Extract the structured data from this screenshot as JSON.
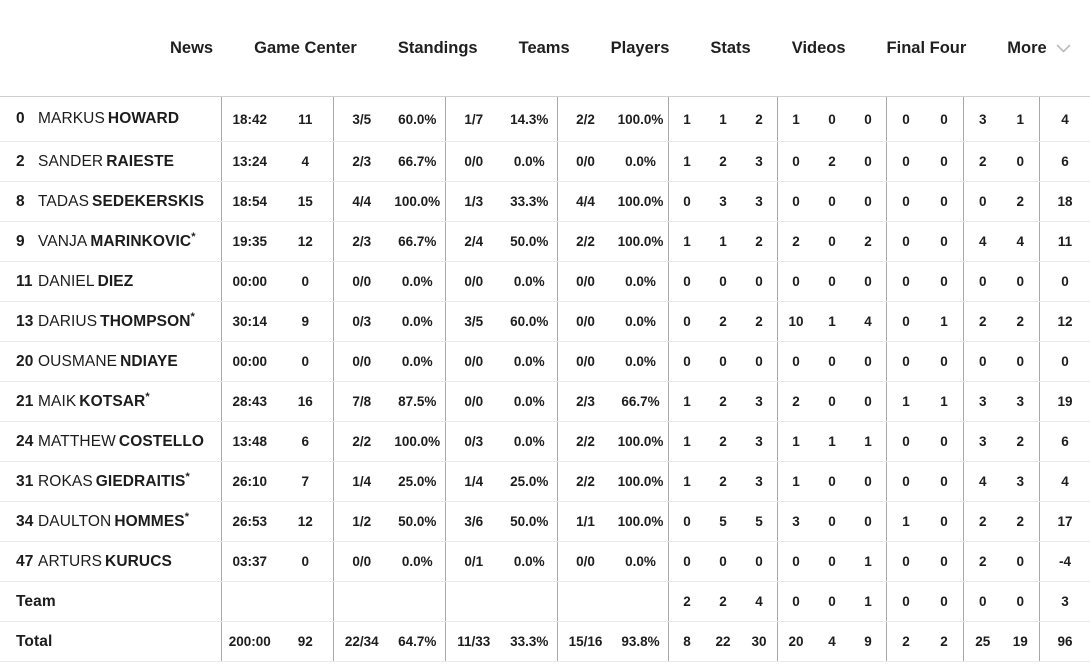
{
  "nav": {
    "items": [
      {
        "label": "News"
      },
      {
        "label": "Game Center"
      },
      {
        "label": "Standings"
      },
      {
        "label": "Teams"
      },
      {
        "label": "Players"
      },
      {
        "label": "Stats"
      },
      {
        "label": "Videos"
      },
      {
        "label": "Final Four"
      },
      {
        "label": "More",
        "chevron": true
      }
    ],
    "more_chevron_icon": "chevron-down"
  },
  "colors": {
    "text": "#1c1c1c",
    "column_divider": "#a8a8a8",
    "row_divider": "#e9e9e9",
    "chevron": "#bcbcbc"
  },
  "table": {
    "starter_mark": "*",
    "rows": [
      {
        "type": "player",
        "num": "0",
        "first": "MARKUS",
        "last": "HOWARD",
        "starter": false,
        "groups": [
          [
            "18:42",
            "11"
          ],
          [
            "3/5",
            "60.0%"
          ],
          [
            "1/7",
            "14.3%"
          ],
          [
            "2/2",
            "100.0%"
          ],
          [
            "1",
            "1",
            "2"
          ],
          [
            "1",
            "0",
            "0"
          ],
          [
            "0",
            "0"
          ],
          [
            "3",
            "1"
          ],
          [
            "4"
          ]
        ]
      },
      {
        "type": "player",
        "num": "2",
        "first": "SANDER",
        "last": "RAIESTE",
        "starter": false,
        "groups": [
          [
            "13:24",
            "4"
          ],
          [
            "2/3",
            "66.7%"
          ],
          [
            "0/0",
            "0.0%"
          ],
          [
            "0/0",
            "0.0%"
          ],
          [
            "1",
            "2",
            "3"
          ],
          [
            "0",
            "2",
            "0"
          ],
          [
            "0",
            "0"
          ],
          [
            "2",
            "0"
          ],
          [
            "6"
          ]
        ]
      },
      {
        "type": "player",
        "num": "8",
        "first": "TADAS",
        "last": "SEDEKERSKIS",
        "starter": false,
        "groups": [
          [
            "18:54",
            "15"
          ],
          [
            "4/4",
            "100.0%"
          ],
          [
            "1/3",
            "33.3%"
          ],
          [
            "4/4",
            "100.0%"
          ],
          [
            "0",
            "3",
            "3"
          ],
          [
            "0",
            "0",
            "0"
          ],
          [
            "0",
            "0"
          ],
          [
            "0",
            "2"
          ],
          [
            "18"
          ]
        ]
      },
      {
        "type": "player",
        "num": "9",
        "first": "VANJA",
        "last": "MARINKOVIC",
        "starter": true,
        "groups": [
          [
            "19:35",
            "12"
          ],
          [
            "2/3",
            "66.7%"
          ],
          [
            "2/4",
            "50.0%"
          ],
          [
            "2/2",
            "100.0%"
          ],
          [
            "1",
            "1",
            "2"
          ],
          [
            "2",
            "0",
            "2"
          ],
          [
            "0",
            "0"
          ],
          [
            "4",
            "4"
          ],
          [
            "11"
          ]
        ]
      },
      {
        "type": "player",
        "num": "11",
        "first": "DANIEL",
        "last": "DIEZ",
        "starter": false,
        "groups": [
          [
            "00:00",
            "0"
          ],
          [
            "0/0",
            "0.0%"
          ],
          [
            "0/0",
            "0.0%"
          ],
          [
            "0/0",
            "0.0%"
          ],
          [
            "0",
            "0",
            "0"
          ],
          [
            "0",
            "0",
            "0"
          ],
          [
            "0",
            "0"
          ],
          [
            "0",
            "0"
          ],
          [
            "0"
          ]
        ]
      },
      {
        "type": "player",
        "num": "13",
        "first": "DARIUS",
        "last": "THOMPSON",
        "starter": true,
        "groups": [
          [
            "30:14",
            "9"
          ],
          [
            "0/3",
            "0.0%"
          ],
          [
            "3/5",
            "60.0%"
          ],
          [
            "0/0",
            "0.0%"
          ],
          [
            "0",
            "2",
            "2"
          ],
          [
            "10",
            "1",
            "4"
          ],
          [
            "0",
            "1"
          ],
          [
            "2",
            "2"
          ],
          [
            "12"
          ]
        ]
      },
      {
        "type": "player",
        "num": "20",
        "first": "OUSMANE",
        "last": "NDIAYE",
        "starter": false,
        "groups": [
          [
            "00:00",
            "0"
          ],
          [
            "0/0",
            "0.0%"
          ],
          [
            "0/0",
            "0.0%"
          ],
          [
            "0/0",
            "0.0%"
          ],
          [
            "0",
            "0",
            "0"
          ],
          [
            "0",
            "0",
            "0"
          ],
          [
            "0",
            "0"
          ],
          [
            "0",
            "0"
          ],
          [
            "0"
          ]
        ]
      },
      {
        "type": "player",
        "num": "21",
        "first": "MAIK",
        "last": "KOTSAR",
        "starter": true,
        "groups": [
          [
            "28:43",
            "16"
          ],
          [
            "7/8",
            "87.5%"
          ],
          [
            "0/0",
            "0.0%"
          ],
          [
            "2/3",
            "66.7%"
          ],
          [
            "1",
            "2",
            "3"
          ],
          [
            "2",
            "0",
            "0"
          ],
          [
            "1",
            "1"
          ],
          [
            "3",
            "3"
          ],
          [
            "19"
          ]
        ]
      },
      {
        "type": "player",
        "num": "24",
        "first": "MATTHEW",
        "last": "COSTELLO",
        "starter": false,
        "groups": [
          [
            "13:48",
            "6"
          ],
          [
            "2/2",
            "100.0%"
          ],
          [
            "0/3",
            "0.0%"
          ],
          [
            "2/2",
            "100.0%"
          ],
          [
            "1",
            "2",
            "3"
          ],
          [
            "1",
            "1",
            "1"
          ],
          [
            "0",
            "0"
          ],
          [
            "3",
            "2"
          ],
          [
            "6"
          ]
        ]
      },
      {
        "type": "player",
        "num": "31",
        "first": "ROKAS",
        "last": "GIEDRAITIS",
        "starter": true,
        "groups": [
          [
            "26:10",
            "7"
          ],
          [
            "1/4",
            "25.0%"
          ],
          [
            "1/4",
            "25.0%"
          ],
          [
            "2/2",
            "100.0%"
          ],
          [
            "1",
            "2",
            "3"
          ],
          [
            "1",
            "0",
            "0"
          ],
          [
            "0",
            "0"
          ],
          [
            "4",
            "3"
          ],
          [
            "4"
          ]
        ]
      },
      {
        "type": "player",
        "num": "34",
        "first": "DAULTON",
        "last": "HOMMES",
        "starter": true,
        "groups": [
          [
            "26:53",
            "12"
          ],
          [
            "1/2",
            "50.0%"
          ],
          [
            "3/6",
            "50.0%"
          ],
          [
            "1/1",
            "100.0%"
          ],
          [
            "0",
            "5",
            "5"
          ],
          [
            "3",
            "0",
            "0"
          ],
          [
            "1",
            "0"
          ],
          [
            "2",
            "2"
          ],
          [
            "17"
          ]
        ]
      },
      {
        "type": "player",
        "num": "47",
        "first": "ARTURS",
        "last": "KURUCS",
        "starter": false,
        "groups": [
          [
            "03:37",
            "0"
          ],
          [
            "0/0",
            "0.0%"
          ],
          [
            "0/1",
            "0.0%"
          ],
          [
            "0/0",
            "0.0%"
          ],
          [
            "0",
            "0",
            "0"
          ],
          [
            "0",
            "0",
            "1"
          ],
          [
            "0",
            "0"
          ],
          [
            "2",
            "0"
          ],
          [
            "-4"
          ]
        ]
      },
      {
        "type": "summary",
        "label": "Team",
        "groups": [
          [
            "",
            ""
          ],
          [
            "",
            ""
          ],
          [
            "",
            ""
          ],
          [
            "",
            ""
          ],
          [
            "2",
            "2",
            "4"
          ],
          [
            "0",
            "0",
            "1"
          ],
          [
            "0",
            "0"
          ],
          [
            "0",
            "0"
          ],
          [
            "3"
          ]
        ]
      },
      {
        "type": "summary",
        "label": "Total",
        "groups": [
          [
            "200:00",
            "92"
          ],
          [
            "22/34",
            "64.7%"
          ],
          [
            "11/33",
            "33.3%"
          ],
          [
            "15/16",
            "93.8%"
          ],
          [
            "8",
            "22",
            "30"
          ],
          [
            "20",
            "4",
            "9"
          ],
          [
            "2",
            "2"
          ],
          [
            "25",
            "19"
          ],
          [
            "96"
          ]
        ]
      }
    ]
  }
}
